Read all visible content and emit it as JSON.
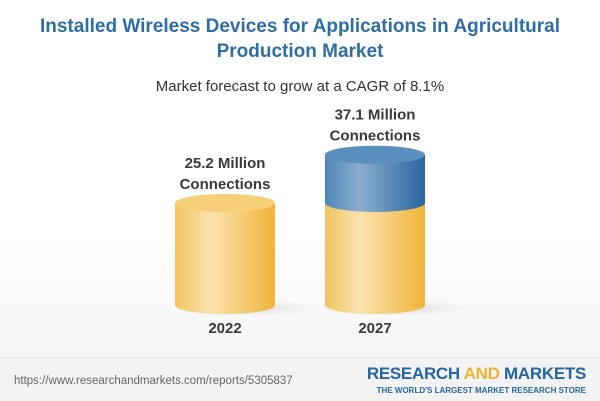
{
  "title": "Installed Wireless Devices for Applications in Agricultural Production Market",
  "subtitle": "Market forecast to grow at a CAGR of 8.1%",
  "chart_data": {
    "type": "bar",
    "style": "3d-cylinder",
    "categories": [
      "2022",
      "2027"
    ],
    "values": [
      25.2,
      37.1
    ],
    "unit": "Million Connections",
    "labels": [
      [
        "25.2 Million",
        "Connections"
      ],
      [
        "37.1 Million",
        "Connections"
      ]
    ],
    "cagr": "8.1%",
    "colors": {
      "base": "#f5c55a",
      "growth": "#3f7bb0"
    }
  },
  "footer": {
    "url": "https://www.researchandmarkets.com/reports/5305837",
    "logo_part1": "RESEARCH ",
    "logo_part2": "AND",
    "logo_part3": " MARKETS",
    "tagline": "THE WORLD'S LARGEST MARKET RESEARCH STORE"
  }
}
